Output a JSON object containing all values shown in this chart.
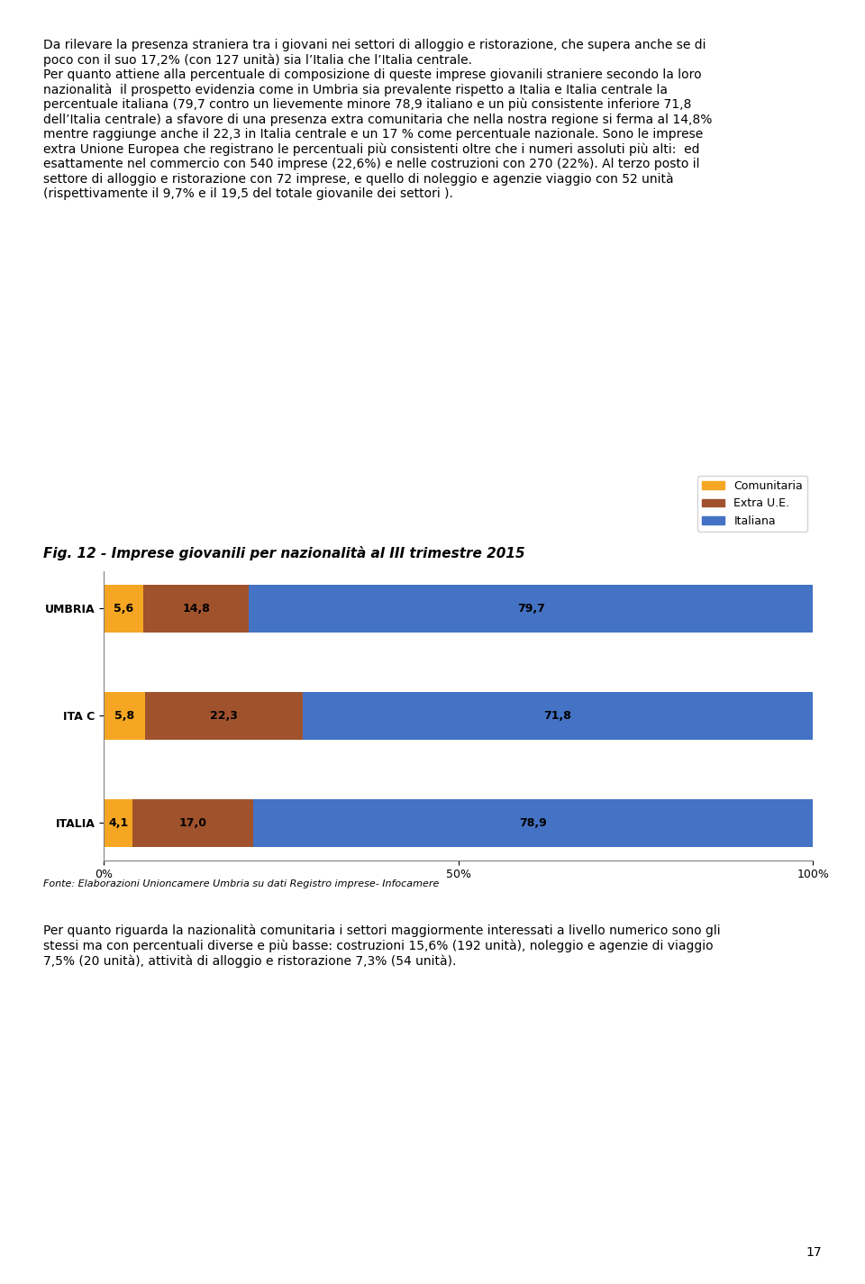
{
  "title": "Fig. 12 - Imprese giovanili per nazionalità al III trimestre 2015",
  "categories": [
    "UMBRIA",
    "ITA C",
    "ITALIA"
  ],
  "comunitaria": [
    5.6,
    5.8,
    4.1
  ],
  "extra_ue": [
    14.8,
    22.3,
    17.0
  ],
  "italiana": [
    79.7,
    71.8,
    78.9
  ],
  "color_comunitaria": "#F5A623",
  "color_extra_ue": "#A0522D",
  "color_italiana": "#4472C4",
  "legend_labels": [
    "Comunitaria",
    "Extra U.E.",
    "Italiana"
  ],
  "xlabel_ticks": [
    "0%",
    "50%",
    "100%"
  ],
  "xlabel_vals": [
    0,
    50,
    100
  ],
  "source_text": "Fonte: Elaborazioni Unioncamere Umbria su dati Registro imprese- Infocamere",
  "body_text_above": "Da rilevare la presenza straniera tra i giovani nei settori di alloggio e ristorazione, che supera anche se di\npoco con il suo 17,2% (con 127 unità) sia l’Italia che l’Italia centrale.\nPer quanto attiene alla percentuale di composizione di queste imprese giovanili straniere secondo la loro\nnazionalità  il prospetto evidenzia come in Umbria sia prevalente rispetto a Italia e Italia centrale la\npercentuale italiana (79,7 contro un lievemente minore 78,9 italiano e un più consistente inferiore 71,8\ndell’Italia centrale) a sfavore di una presenza extra comunitaria che nella nostra regione si ferma al 14,8%\nmentre raggiunge anche il 22,3 in Italia centrale e un 17 % come percentuale nazionale. Sono le imprese\nextra Unione Europea che registrano le percentuali più consistenti oltre che i numeri assoluti più alti:  ed\nesattamente nel commercio con 540 imprese (22,6%) e nelle costruzioni con 270 (22%). Al terzo posto il\nsettore di alloggio e ristorazione con 72 imprese, e quello di noleggio e agenzie viaggio con 52 unità\n(rispettivamente il 9,7% e il 19,5 del totale giovanile dei settori ).",
  "body_text_below": "Per quanto riguarda la nazionalità comunitaria i settori maggiormente interessati a livello numerico sono gli\nstessi ma con percentuali diverse e più basse: costruzioni 15,6% (192 unità), noleggio e agenzie di viaggio\n7,5% (20 unità), attività di alloggio e ristorazione 7,3% (54 unità).",
  "page_number": "17",
  "fig_title_fontsize": 11,
  "body_fontsize": 10,
  "bar_label_fontsize": 9,
  "legend_fontsize": 9,
  "ytick_fontsize": 9,
  "xtick_fontsize": 9,
  "source_fontsize": 8
}
